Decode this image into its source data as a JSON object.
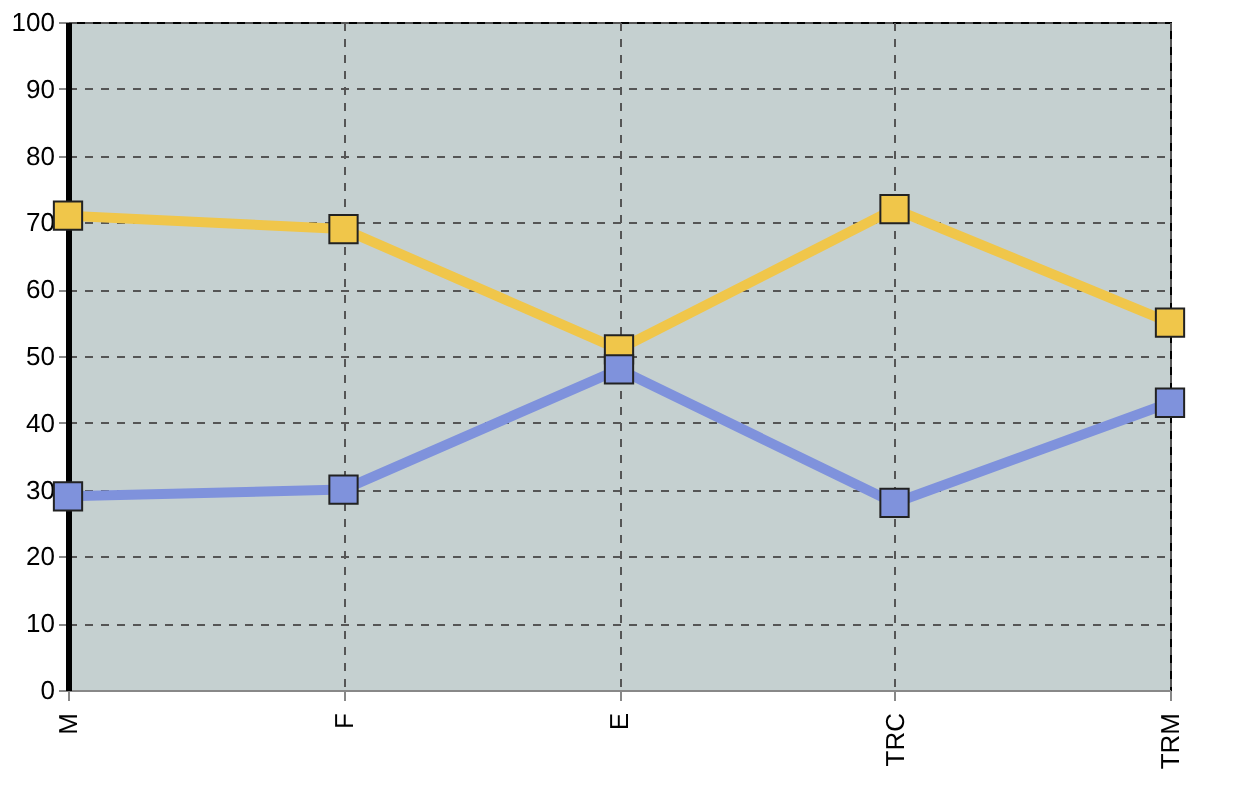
{
  "chart_data": {
    "type": "line",
    "categories": [
      "M",
      "F",
      "E",
      "TRC",
      "TRM"
    ],
    "series": [
      {
        "color": "#f0c64a",
        "values": [
          71,
          69,
          51,
          72,
          55
        ]
      },
      {
        "color": "#7f92dc",
        "values": [
          29,
          30,
          48,
          28,
          43
        ]
      }
    ],
    "ylim": [
      0,
      100
    ],
    "yticks": [
      0,
      10,
      20,
      30,
      40,
      50,
      60,
      70,
      80,
      90,
      100
    ],
    "grid": true,
    "marker": "square",
    "line_style": "solid",
    "legend": false
  }
}
